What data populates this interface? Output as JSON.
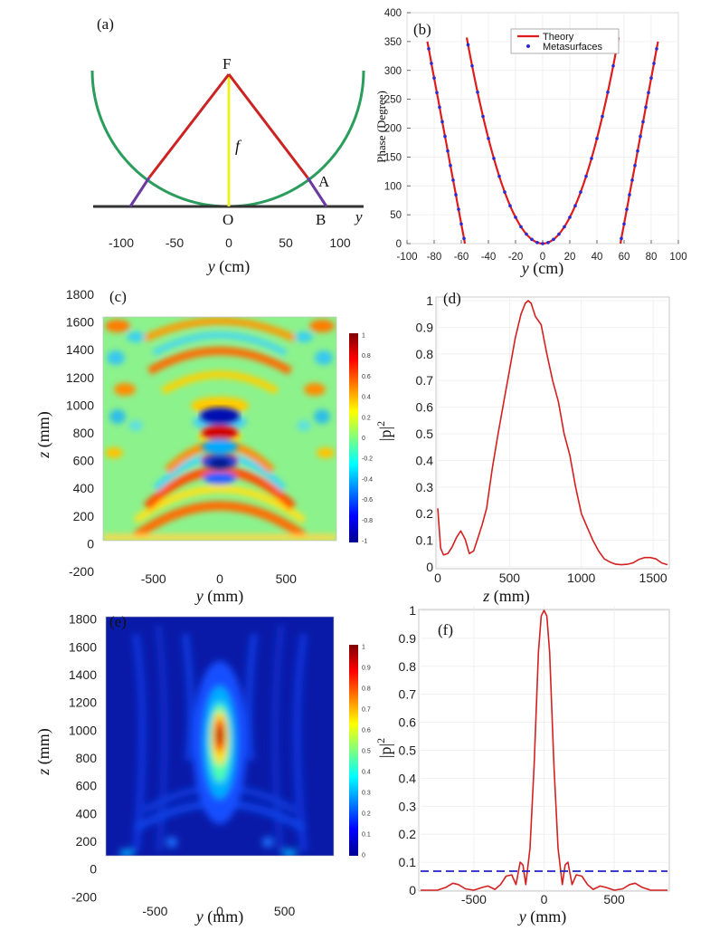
{
  "panels": {
    "a": {
      "label": "(a)",
      "x_label_var": "y",
      "x_label_unit": " (cm)",
      "axis_var": "y",
      "point_labels": {
        "F": "F",
        "O": "O",
        "A": "A",
        "B": "B",
        "f": "f"
      },
      "x_ticks": [
        "-100",
        "-50",
        "0",
        "50",
        "100"
      ]
    },
    "b": {
      "label": "(b)",
      "x_label_var": "y",
      "x_label_unit": " (cm)",
      "y_label": "Phase (Degree)",
      "legend": [
        "Theory",
        "Metasurfaces"
      ]
    },
    "c": {
      "label": "(c)",
      "x_label_var": "y",
      "x_label_unit": " (mm)",
      "y_label_var": "z",
      "y_label_unit": " (mm)"
    },
    "d": {
      "label": "(d)",
      "x_label_var": "z",
      "x_label_unit": " (mm)",
      "y_label": "|p|",
      "y_label_sup": "2"
    },
    "e": {
      "label": "(e)",
      "x_label_var": "y",
      "x_label_unit": " (mm)",
      "y_label_var": "z",
      "y_label_unit": " (mm)"
    },
    "f": {
      "label": "(f)",
      "x_label_var": "y",
      "x_label_unit": " (mm)",
      "y_label": "|p|",
      "y_label_sup": "2"
    }
  },
  "colors": {
    "theory": "#dd1c1c",
    "meta": "#2a2ad0",
    "circle": "#2a9d5c",
    "rayRed": "#cc2222",
    "rayPurple": "#6a3aa0",
    "focal": "#e8e81a",
    "curve": "#d42020",
    "dash": "#2020c8"
  },
  "chart_data": [
    {
      "panel": "b",
      "type": "line",
      "title": "",
      "xlabel": "y (cm)",
      "ylabel": "Phase (Degree)",
      "xlim": [
        -100,
        100
      ],
      "ylim": [
        0,
        400
      ],
      "x_ticks": [
        -100,
        -80,
        -60,
        -40,
        -20,
        0,
        20,
        40,
        60,
        80,
        100
      ],
      "y_ticks": [
        0,
        50,
        100,
        150,
        200,
        250,
        300,
        350,
        400
      ],
      "series": [
        {
          "name": "Theory",
          "segments": [
            {
              "x": [
                -85,
                -57.3
              ],
              "y": [
                350,
                0
              ]
            },
            {
              "x": [
                -56,
                -40,
                -20,
                0,
                20,
                40,
                56
              ],
              "y": [
                357,
                195,
                52,
                0,
                52,
                195,
                357
              ]
            },
            {
              "x": [
                57.3,
                85
              ],
              "y": [
                0,
                350
              ]
            }
          ]
        },
        {
          "name": "Metasurfaces",
          "x": [
            -84,
            -82,
            -80,
            -78,
            -76,
            -74,
            -72,
            -70,
            -68,
            -66,
            -64,
            -62,
            -60,
            -58,
            -55,
            -52,
            -48,
            -44,
            -40,
            -36,
            -32,
            -28,
            -24,
            -20,
            -16,
            -12,
            -8,
            -4,
            0,
            4,
            8,
            12,
            16,
            20,
            24,
            28,
            32,
            36,
            40,
            44,
            48,
            52,
            55,
            58,
            60,
            62,
            64,
            66,
            68,
            70,
            72,
            74,
            76,
            78,
            80,
            82,
            84
          ]
        }
      ]
    },
    {
      "panel": "c",
      "type": "heatmap",
      "xlabel": "y (mm)",
      "ylabel": "z (mm)",
      "xlim": [
        -880,
        880
      ],
      "ylim": [
        -200,
        1800
      ],
      "x_ticks": [
        -500,
        0,
        500
      ],
      "y_ticks": [
        -200,
        0,
        200,
        400,
        600,
        800,
        1000,
        1200,
        1400,
        1600,
        1800
      ],
      "colorbar": {
        "min": -1,
        "max": 1,
        "ticks": [
          "1",
          "0.8",
          "0.6",
          "0.4",
          "0.2",
          "0",
          "-0.2",
          "-0.4",
          "-0.6",
          "-0.8",
          "-1"
        ]
      }
    },
    {
      "panel": "d",
      "type": "line",
      "xlabel": "z (mm)",
      "ylabel": "|p|^2",
      "xlim": [
        0,
        1600
      ],
      "ylim": [
        0,
        1
      ],
      "x_ticks": [
        0,
        500,
        1000,
        1500
      ],
      "y_ticks": [
        0,
        0.1,
        0.2,
        0.3,
        0.4,
        0.5,
        0.6,
        0.7,
        0.8,
        0.9,
        1
      ],
      "series": [
        {
          "name": "|p|^2",
          "x": [
            0,
            20,
            40,
            70,
            100,
            130,
            160,
            190,
            220,
            250,
            280,
            310,
            340,
            380,
            420,
            460,
            500,
            540,
            580,
            610,
            630,
            650,
            680,
            720,
            760,
            800,
            840,
            880,
            920,
            960,
            1000,
            1040,
            1080,
            1120,
            1160,
            1200,
            1240,
            1280,
            1320,
            1360,
            1400,
            1440,
            1480,
            1520,
            1560,
            1600
          ],
          "y": [
            0.22,
            0.07,
            0.045,
            0.05,
            0.075,
            0.11,
            0.135,
            0.105,
            0.05,
            0.06,
            0.11,
            0.16,
            0.22,
            0.37,
            0.5,
            0.62,
            0.74,
            0.86,
            0.95,
            0.99,
            1.0,
            0.99,
            0.94,
            0.91,
            0.8,
            0.7,
            0.62,
            0.5,
            0.42,
            0.3,
            0.2,
            0.15,
            0.1,
            0.06,
            0.03,
            0.018,
            0.01,
            0.008,
            0.01,
            0.015,
            0.028,
            0.035,
            0.035,
            0.03,
            0.015,
            0.008
          ]
        }
      ]
    },
    {
      "panel": "e",
      "type": "heatmap",
      "xlabel": "y (mm)",
      "ylabel": "z (mm)",
      "xlim": [
        -880,
        880
      ],
      "ylim": [
        -250,
        1850
      ],
      "x_ticks": [
        -500,
        0,
        500
      ],
      "y_ticks": [
        -200,
        0,
        200,
        400,
        600,
        800,
        1000,
        1200,
        1400,
        1600,
        1800
      ],
      "colorbar": {
        "min": 0,
        "max": 1,
        "ticks": [
          "1",
          "0.9",
          "0.8",
          "0.7",
          "0.6",
          "0.5",
          "0.4",
          "0.3",
          "0.2",
          "0.1",
          "0"
        ]
      }
    },
    {
      "panel": "f",
      "type": "line",
      "xlabel": "y (mm)",
      "ylabel": "|p|^2",
      "xlim": [
        -880,
        880
      ],
      "ylim": [
        0,
        1
      ],
      "x_ticks": [
        -500,
        0,
        500
      ],
      "y_ticks": [
        0,
        0.1,
        0.2,
        0.3,
        0.4,
        0.5,
        0.6,
        0.7,
        0.8,
        0.9,
        1
      ],
      "series": [
        {
          "name": "|p|^2",
          "x": [
            -880,
            -760,
            -700,
            -650,
            -610,
            -560,
            -500,
            -440,
            -400,
            -350,
            -310,
            -270,
            -230,
            -200,
            -170,
            -150,
            -130,
            -100,
            -70,
            -40,
            -20,
            0,
            20,
            40,
            70,
            100,
            130,
            150,
            170,
            200,
            230,
            270,
            310,
            350,
            400,
            440,
            500,
            560,
            610,
            650,
            700,
            760,
            880
          ],
          "y": [
            0.0,
            0.0,
            0.01,
            0.025,
            0.02,
            0.005,
            0.0,
            0.01,
            0.015,
            0.003,
            0.02,
            0.05,
            0.055,
            0.02,
            0.1,
            0.09,
            0.02,
            0.15,
            0.45,
            0.85,
            0.98,
            1.0,
            0.98,
            0.85,
            0.45,
            0.15,
            0.02,
            0.09,
            0.1,
            0.02,
            0.055,
            0.05,
            0.02,
            0.003,
            0.015,
            0.01,
            0.0,
            0.005,
            0.02,
            0.025,
            0.01,
            0.0,
            0.0
          ]
        },
        {
          "name": "threshold",
          "style": "dashed",
          "y": 0.068
        }
      ]
    }
  ]
}
